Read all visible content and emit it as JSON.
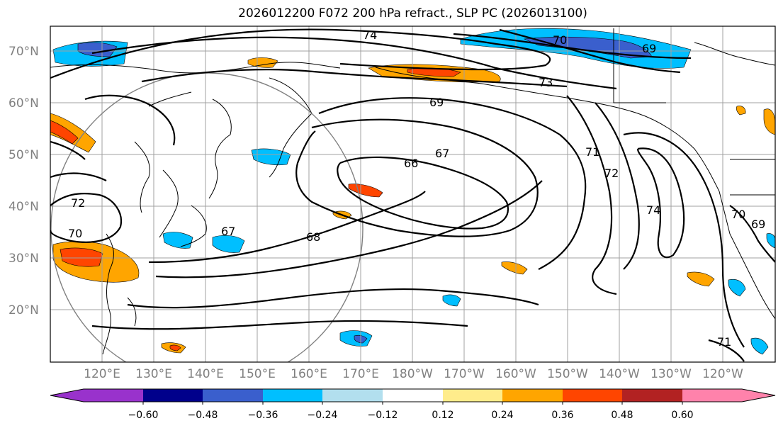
{
  "title": "2026012200 F072 200 hPa refract., SLP PC (2026013100)",
  "lat_labels": [
    "70°N",
    "60°N",
    "50°N",
    "40°N",
    "30°N",
    "20°N"
  ],
  "lon_labels": [
    "120°E",
    "130°E",
    "140°E",
    "150°E",
    "160°E",
    "170°E",
    "180°W",
    "170°W",
    "160°W",
    "150°W",
    "140°W",
    "130°W",
    "120°W"
  ],
  "contour_labels": [
    "74",
    "73",
    "70",
    "69",
    "69",
    "67",
    "66",
    "68",
    "67",
    "71",
    "72",
    "74",
    "70",
    "72",
    "70",
    "71",
    "69"
  ],
  "colorbar": {
    "colors": [
      "#9932cc",
      "#00008b",
      "#3a5fcd",
      "#00bfff",
      "#b2dfee",
      "#ffffff",
      "#ffec8b",
      "#ffa500",
      "#ff4500",
      "#b22222",
      "#ff82ab"
    ],
    "tick_labels": [
      "−0.60",
      "−0.48",
      "−0.36",
      "−0.24",
      "−0.12",
      "0.12",
      "0.24",
      "0.36",
      "0.48",
      "0.60"
    ]
  },
  "colors": {
    "contour": "#000000",
    "grid": "#a0a0a0",
    "coast": "#000000"
  }
}
